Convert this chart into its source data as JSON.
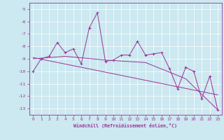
{
  "xlabel": "Windchill (Refroidissement éolien,°C)",
  "background_color": "#cce8f0",
  "line_color": "#993399",
  "xlim": [
    -0.5,
    23.5
  ],
  "ylim": [
    -13.5,
    -4.5
  ],
  "yticks": [
    -13,
    -12,
    -11,
    -10,
    -9,
    -8,
    -7,
    -6,
    -5
  ],
  "xticks": [
    0,
    1,
    2,
    3,
    4,
    5,
    6,
    7,
    8,
    9,
    10,
    11,
    12,
    13,
    14,
    15,
    16,
    17,
    18,
    19,
    20,
    21,
    22,
    23
  ],
  "series": [
    [
      0,
      -10.0
    ],
    [
      1,
      -9.0
    ],
    [
      2,
      -8.8
    ],
    [
      3,
      -7.7
    ],
    [
      4,
      -8.5
    ],
    [
      5,
      -8.2
    ],
    [
      6,
      -9.4
    ],
    [
      7,
      -6.5
    ],
    [
      8,
      -5.3
    ],
    [
      9,
      -9.2
    ],
    [
      10,
      -9.1
    ],
    [
      11,
      -8.7
    ],
    [
      12,
      -8.7
    ],
    [
      13,
      -7.6
    ],
    [
      14,
      -8.7
    ],
    [
      15,
      -8.6
    ],
    [
      16,
      -8.5
    ],
    [
      17,
      -9.8
    ],
    [
      18,
      -11.4
    ],
    [
      19,
      -9.7
    ],
    [
      20,
      -10.0
    ],
    [
      21,
      -12.2
    ],
    [
      22,
      -10.4
    ],
    [
      23,
      -13.1
    ]
  ],
  "regression_series": [
    [
      0,
      -8.9
    ],
    [
      23,
      -11.9
    ]
  ],
  "extra_series": [
    [
      0,
      -9.0
    ],
    [
      4,
      -8.8
    ],
    [
      9,
      -9.1
    ],
    [
      14,
      -9.3
    ],
    [
      19,
      -10.6
    ],
    [
      23,
      -13.1
    ]
  ]
}
